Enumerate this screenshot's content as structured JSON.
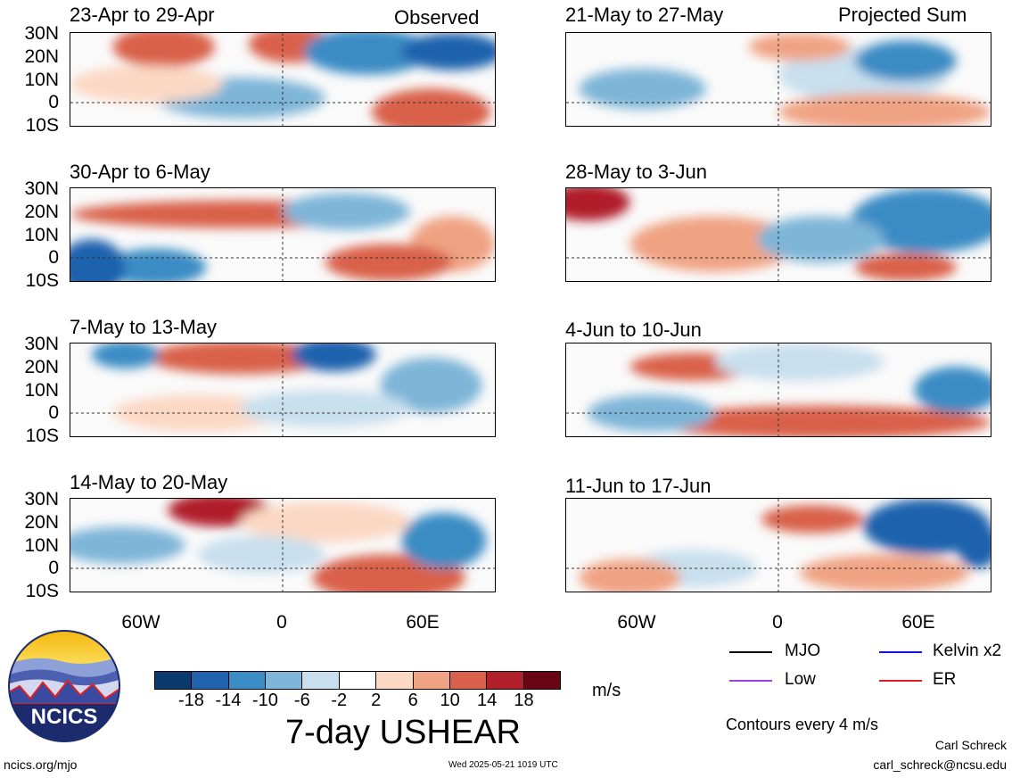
{
  "headers": {
    "left": "Observed",
    "right": "Projected Sum"
  },
  "panels": {
    "left": [
      "23-Apr to 29-Apr",
      "30-Apr to 6-May",
      "7-May to 13-May",
      "14-May to 20-May"
    ],
    "right": [
      "21-May to 27-May",
      "28-May to 3-Jun",
      "4-Jun to 10-Jun",
      "11-Jun to 17-Jun"
    ]
  },
  "axes": {
    "y_labels": [
      "30N",
      "20N",
      "10N",
      "0",
      "10S"
    ],
    "x_labels": [
      "60W",
      "0",
      "60E"
    ]
  },
  "colorbar": {
    "ticks": [
      "-18",
      "-14",
      "-10",
      "-6",
      "-2",
      "2",
      "6",
      "10",
      "14",
      "18"
    ],
    "colors": [
      "#0b3a6e",
      "#1f62ad",
      "#3a8cc4",
      "#7eb5d8",
      "#c8dfee",
      "#ffffff",
      "#fbd8c4",
      "#f0a383",
      "#d9604a",
      "#b01f2a",
      "#6a0516"
    ],
    "units": "m/s"
  },
  "title": "7-day USHEAR",
  "legend": {
    "items": [
      {
        "label": "MJO",
        "color": "#000000"
      },
      {
        "label": "Kelvin x2",
        "color": "#1010e0"
      },
      {
        "label": "Low",
        "color": "#a040e0"
      },
      {
        "label": "ER",
        "color": "#e02020"
      }
    ],
    "contours": "Contours every 4 m/s"
  },
  "footer": {
    "logo_text": "NCICS",
    "website": "ncics.org/mjo",
    "timestamp": "Wed 2025-05-21 1019 UTC",
    "author": "Carl Schreck",
    "email": "carl_schreck@ncsu.edu"
  }
}
